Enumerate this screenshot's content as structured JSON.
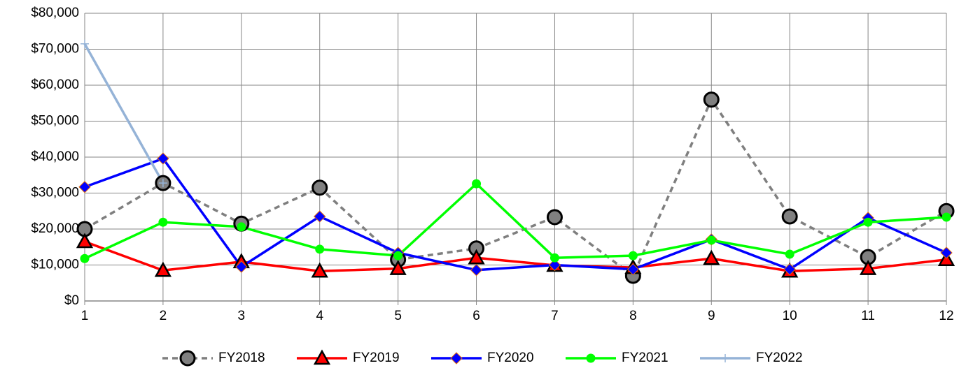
{
  "chart_data": {
    "type": "line",
    "x": [
      1,
      2,
      3,
      4,
      5,
      6,
      7,
      8,
      9,
      10,
      11,
      12
    ],
    "xlim": [
      1,
      12
    ],
    "xticks": [
      1,
      2,
      3,
      4,
      5,
      6,
      7,
      8,
      9,
      10,
      11,
      12
    ],
    "ylim": [
      0,
      80000
    ],
    "yticks": [
      {
        "value": 0,
        "label": "$0"
      },
      {
        "value": 10000,
        "label": "$10,000"
      },
      {
        "value": 20000,
        "label": "$20,000"
      },
      {
        "value": 30000,
        "label": "$30,000"
      },
      {
        "value": 40000,
        "label": "$40,000"
      },
      {
        "value": 50000,
        "label": "$50,000"
      },
      {
        "value": 60000,
        "label": "$60,000"
      },
      {
        "value": 70000,
        "label": "$70,000"
      },
      {
        "value": 80000,
        "label": "$80,000"
      }
    ],
    "grid": true,
    "legend": "bottom",
    "series": [
      {
        "name": "FY2018",
        "color": "#7f7f7f",
        "line_style": "dashed",
        "marker": "circle",
        "marker_color": "#808080",
        "values": [
          20000,
          32800,
          21500,
          31500,
          11500,
          14600,
          23300,
          7000,
          56000,
          23500,
          12200,
          25000
        ]
      },
      {
        "name": "FY2019",
        "color": "#ff0000",
        "line_style": "solid",
        "marker": "triangle",
        "marker_color": "#ff0000",
        "values": [
          16500,
          8500,
          10900,
          8300,
          9000,
          12000,
          9900,
          9300,
          11800,
          8300,
          9000,
          11500
        ]
      },
      {
        "name": "FY2020",
        "color": "#0000ff",
        "line_style": "solid",
        "marker": "diamond",
        "marker_color": "#0000ff",
        "values": [
          31700,
          39600,
          9500,
          23500,
          13400,
          8600,
          10000,
          8800,
          17100,
          8800,
          23100,
          13400
        ]
      },
      {
        "name": "FY2021",
        "color": "#00ff00",
        "line_style": "solid",
        "marker": "dot",
        "marker_color": "#00ff00",
        "values": [
          11800,
          21900,
          20600,
          14400,
          12600,
          32600,
          12000,
          12600,
          16900,
          13000,
          21900,
          23300
        ]
      },
      {
        "name": "FY2022",
        "color": "#95b3d7",
        "line_style": "solid",
        "marker": "plus",
        "marker_color": "#95b3d7",
        "values": [
          71500,
          32800,
          null,
          null,
          null,
          null,
          null,
          null,
          null,
          null,
          null,
          null
        ]
      }
    ]
  }
}
